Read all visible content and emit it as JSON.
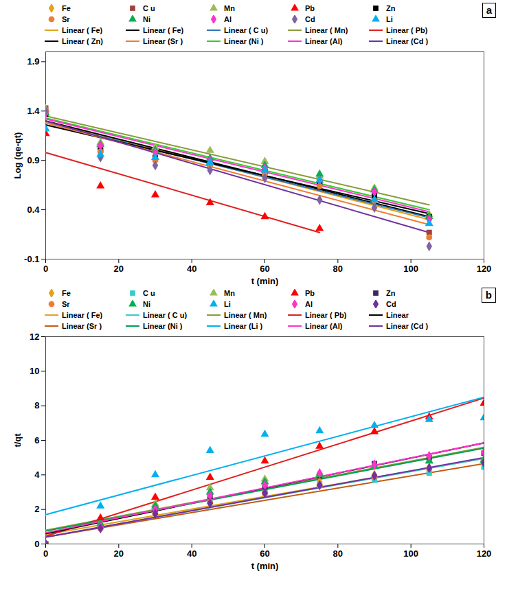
{
  "chart_data": [
    {
      "type": "scatter",
      "title": "a",
      "x_label": "t (min)",
      "y_label": "Log (qe-qt)",
      "xlim": [
        0,
        120
      ],
      "xticks": [
        0,
        20,
        40,
        60,
        80,
        100,
        120
      ],
      "ylim": [
        -0.1,
        2.0
      ],
      "yticks": [
        -0.1,
        0.4,
        0.9,
        1.4,
        1.9
      ],
      "legend": "top",
      "grid": false,
      "series": [
        {
          "name": "Fe",
          "color": "#e3a21a",
          "marker": "diamond",
          "x": [
            0,
            15,
            30,
            45,
            60,
            75,
            90,
            105
          ],
          "values": [
            1.42,
            1.0,
            0.95,
            0.88,
            0.8,
            0.68,
            0.55,
            0.3
          ]
        },
        {
          "name": "C u",
          "color": "#a0413c",
          "marker": "square",
          "x": [
            0,
            15,
            30,
            45,
            60,
            75,
            90,
            105
          ],
          "values": [
            1.43,
            1.03,
            0.93,
            0.87,
            0.78,
            0.67,
            0.53,
            0.17
          ]
        },
        {
          "name": "Mn",
          "color": "#9bbb59",
          "marker": "triangle",
          "x": [
            0,
            15,
            30,
            45,
            60,
            75,
            90,
            105
          ],
          "values": [
            1.42,
            1.08,
            1.03,
            1.0,
            0.89,
            0.74,
            0.62,
            0.35
          ]
        },
        {
          "name": "Pb",
          "color": "#ff0000",
          "marker": "triangle",
          "x": [
            0,
            15,
            30,
            45,
            60,
            75
          ],
          "values": [
            1.17,
            0.64,
            0.55,
            0.47,
            0.33,
            0.21
          ]
        },
        {
          "name": "Zn",
          "color": "#000000",
          "marker": "square",
          "x": [
            0,
            15,
            30,
            45,
            60,
            75,
            90,
            105
          ],
          "values": [
            1.37,
            1.0,
            0.92,
            0.86,
            0.79,
            0.68,
            0.55,
            0.33
          ]
        },
        {
          "name": "Sr",
          "color": "#ed7d31",
          "marker": "circle",
          "x": [
            0,
            15,
            30,
            45,
            60,
            75,
            90,
            105
          ],
          "values": [
            1.4,
            0.99,
            0.9,
            0.85,
            0.76,
            0.64,
            0.49,
            0.12
          ]
        },
        {
          "name": "Ni",
          "color": "#00b050",
          "marker": "triangle",
          "x": [
            0,
            15,
            30,
            45,
            60,
            75,
            90,
            105
          ],
          "values": [
            1.38,
            1.06,
            1.0,
            0.92,
            0.85,
            0.76,
            0.6,
            0.33
          ]
        },
        {
          "name": "Al",
          "color": "#ff33cc",
          "marker": "diamond",
          "x": [
            0,
            15,
            30,
            45,
            60,
            75,
            90,
            105
          ],
          "values": [
            1.38,
            1.05,
            0.98,
            0.9,
            0.82,
            0.7,
            0.58,
            0.3
          ]
        },
        {
          "name": "Cd",
          "color": "#8064a2",
          "marker": "diamond",
          "x": [
            0,
            15,
            30,
            45,
            60,
            75,
            90,
            105
          ],
          "values": [
            1.4,
            0.93,
            0.85,
            0.8,
            0.72,
            0.5,
            0.42,
            0.03
          ]
        },
        {
          "name": "Li",
          "color": "#00b0f0",
          "marker": "triangle",
          "x": [
            0,
            15,
            30,
            45,
            60,
            75,
            90,
            105
          ],
          "values": [
            1.22,
            0.96,
            0.93,
            0.88,
            0.8,
            0.7,
            0.5,
            0.26
          ]
        },
        {
          "name": "Linear ( Fe)",
          "type": "line",
          "color": "#e3a21a",
          "x": [
            0,
            105
          ],
          "values": [
            1.3,
            0.3
          ]
        },
        {
          "name": "Linear ( Fe)",
          "type": "line",
          "color": "#000000",
          "x": [
            0,
            105
          ],
          "values": [
            1.3,
            0.33
          ]
        },
        {
          "name": "Linear ( C u)",
          "type": "line",
          "color": "#2e75b6",
          "x": [
            0,
            105
          ],
          "values": [
            1.28,
            0.32
          ]
        },
        {
          "name": "Linear ( Mn)",
          "type": "line",
          "color": "#8a9a3b",
          "x": [
            0,
            105
          ],
          "values": [
            1.35,
            0.45
          ]
        },
        {
          "name": "Linear ( Pb)",
          "type": "line",
          "color": "#e02020",
          "x": [
            0,
            75
          ],
          "values": [
            0.98,
            0.17
          ]
        },
        {
          "name": "Linear ( Zn)",
          "type": "line",
          "color": "#000000",
          "x": [
            0,
            105
          ],
          "values": [
            1.26,
            0.36
          ]
        },
        {
          "name": "Linear (Sr )",
          "type": "line",
          "color": "#ed7d31",
          "x": [
            0,
            105
          ],
          "values": [
            1.28,
            0.25
          ]
        },
        {
          "name": "Linear (Ni )",
          "type": "line",
          "color": "#33cc33",
          "x": [
            0,
            105
          ],
          "values": [
            1.33,
            0.4
          ]
        },
        {
          "name": "Linear (Al)",
          "type": "line",
          "color": "#ff33cc",
          "x": [
            0,
            105
          ],
          "values": [
            1.32,
            0.38
          ]
        },
        {
          "name": "Linear (Cd )",
          "type": "line",
          "color": "#7030a0",
          "x": [
            0,
            105
          ],
          "values": [
            1.3,
            0.17
          ]
        }
      ]
    },
    {
      "type": "scatter",
      "title": "b",
      "x_label": "t (min)",
      "y_label": "t/qt",
      "xlim": [
        0,
        120
      ],
      "xticks": [
        0,
        20,
        40,
        60,
        80,
        100,
        120
      ],
      "ylim": [
        0,
        12
      ],
      "yticks": [
        0,
        2,
        4,
        6,
        8,
        10,
        12
      ],
      "legend": "top",
      "grid": false,
      "series": [
        {
          "name": "Fe",
          "color": "#e3a21a",
          "marker": "diamond",
          "x": [
            0,
            15,
            30,
            45,
            60,
            75,
            90,
            105,
            120
          ],
          "values": [
            0,
            1.0,
            1.9,
            2.6,
            3.1,
            3.6,
            4.0,
            4.4,
            4.7
          ]
        },
        {
          "name": "C u",
          "color": "#33cccc",
          "marker": "square",
          "x": [
            0,
            15,
            30,
            45,
            60,
            75,
            90,
            105,
            120
          ],
          "values": [
            0,
            0.95,
            1.8,
            2.5,
            2.95,
            3.4,
            3.7,
            4.1,
            4.45
          ]
        },
        {
          "name": "Mn",
          "color": "#9bbb59",
          "marker": "triangle",
          "x": [
            0,
            15,
            30,
            45,
            60,
            75,
            90,
            105,
            120
          ],
          "values": [
            0,
            1.2,
            2.3,
            3.25,
            3.75,
            4.1,
            4.55,
            4.8,
            4.9
          ]
        },
        {
          "name": "Pb",
          "color": "#ff0000",
          "marker": "triangle",
          "x": [
            0,
            15,
            30,
            45,
            60,
            75,
            90,
            105,
            120
          ],
          "values": [
            0,
            1.5,
            2.7,
            3.85,
            4.8,
            5.65,
            6.5,
            7.35,
            8.15
          ]
        },
        {
          "name": "Zn",
          "color": "#3b2a5a",
          "marker": "square",
          "x": [
            0,
            15,
            30,
            45,
            60,
            75,
            90,
            105,
            120
          ],
          "values": [
            0,
            1.0,
            2.0,
            2.75,
            3.3,
            3.95,
            4.65,
            5.0,
            5.25
          ]
        },
        {
          "name": "Sr",
          "color": "#ed7d31",
          "marker": "circle",
          "x": [
            0,
            15,
            30,
            45,
            60,
            75,
            90,
            105,
            120
          ],
          "values": [
            0,
            0.9,
            1.75,
            2.4,
            2.95,
            3.4,
            3.9,
            4.35,
            4.7
          ]
        },
        {
          "name": "Ni",
          "color": "#00b050",
          "marker": "triangle",
          "x": [
            0,
            15,
            30,
            45,
            60,
            75,
            90,
            105,
            120
          ],
          "values": [
            0,
            1.15,
            2.2,
            3.0,
            3.6,
            4.0,
            4.5,
            4.8,
            4.85
          ]
        },
        {
          "name": "Li",
          "color": "#00b0f0",
          "marker": "triangle",
          "x": [
            0,
            15,
            30,
            45,
            60,
            75,
            90,
            105,
            120
          ],
          "values": [
            0,
            2.2,
            4.0,
            5.4,
            6.35,
            6.55,
            6.85,
            7.2,
            7.3
          ]
        },
        {
          "name": "Al",
          "color": "#ff33cc",
          "marker": "diamond",
          "x": [
            0,
            15,
            30,
            45,
            60,
            75,
            90,
            105,
            120
          ],
          "values": [
            0,
            1.0,
            2.0,
            2.8,
            3.4,
            4.1,
            4.6,
            5.1,
            5.3
          ]
        },
        {
          "name": "Cd",
          "color": "#7030a0",
          "marker": "diamond",
          "x": [
            0,
            15,
            30,
            45,
            60,
            75,
            90,
            105,
            120
          ],
          "values": [
            0,
            0.9,
            1.75,
            2.35,
            2.95,
            3.4,
            3.95,
            4.4,
            4.7
          ]
        },
        {
          "name": "Linear ( Fe)",
          "type": "line",
          "color": "#e3a21a",
          "x": [
            0,
            120
          ],
          "values": [
            0.55,
            4.95
          ]
        },
        {
          "name": "Linear ( C u)",
          "type": "line",
          "color": "#33cccc",
          "x": [
            0,
            120
          ],
          "values": [
            0.4,
            4.95
          ]
        },
        {
          "name": "Linear ( Mn)",
          "type": "line",
          "color": "#8a9a3b",
          "x": [
            0,
            120
          ],
          "values": [
            0.8,
            5.6
          ]
        },
        {
          "name": "Linear ( Pb)",
          "type": "line",
          "color": "#e02020",
          "x": [
            0,
            120
          ],
          "values": [
            0.45,
            8.45
          ]
        },
        {
          "name": "Linear",
          "type": "line",
          "color": "#000000",
          "x": [
            0,
            120
          ],
          "values": [
            0.6,
            5.85
          ]
        },
        {
          "name": "Linear (Sr )",
          "type": "line",
          "color": "#c55a11",
          "x": [
            0,
            120
          ],
          "values": [
            0.4,
            4.65
          ]
        },
        {
          "name": "Linear (Ni )",
          "type": "line",
          "color": "#00a050",
          "x": [
            0,
            120
          ],
          "values": [
            0.75,
            5.55
          ]
        },
        {
          "name": "Linear (Li )",
          "type": "line",
          "color": "#00b0f0",
          "x": [
            0,
            120
          ],
          "values": [
            1.7,
            8.5
          ]
        },
        {
          "name": "Linear (Al)",
          "type": "line",
          "color": "#ff33cc",
          "x": [
            0,
            120
          ],
          "values": [
            0.65,
            5.85
          ]
        },
        {
          "name": "Linear (Cd )",
          "type": "line",
          "color": "#7030a0",
          "x": [
            0,
            120
          ],
          "values": [
            0.4,
            5.0
          ]
        }
      ]
    }
  ]
}
